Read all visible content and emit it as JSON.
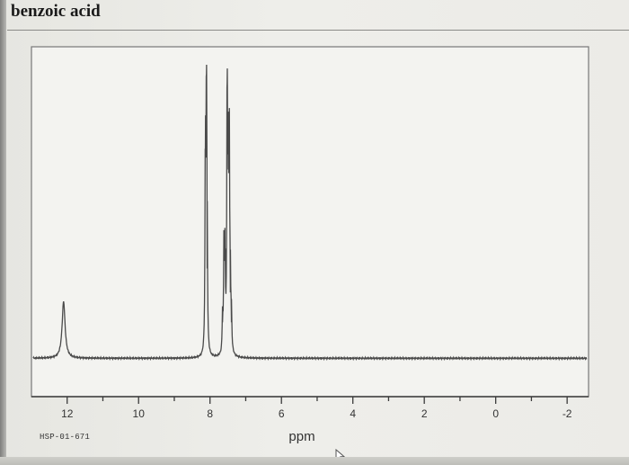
{
  "page": {
    "title": "benzoic acid",
    "spectrum_code": "HSP-01-671"
  },
  "colors": {
    "trace": "#4a4a4a",
    "axis": "#3a3a3a",
    "frame": "#777777"
  },
  "icons": {
    "cursor": "mouse-pointer-icon"
  },
  "chart_data": {
    "type": "line",
    "title": "",
    "xlabel": "ppm",
    "ylabel": "",
    "xlim": [
      13,
      -2.6
    ],
    "ylim": [
      0,
      1
    ],
    "x_reversed": true,
    "grid": false,
    "x_ticks": [
      12,
      10,
      8,
      6,
      4,
      2,
      0,
      -2
    ],
    "x_tick_labels": [
      "12",
      "10",
      "8",
      "6",
      "4",
      "2",
      "0",
      "-2"
    ],
    "baseline": 0.02,
    "peaks": [
      {
        "ppm": 12.1,
        "height": 0.19,
        "width": 0.05,
        "region": "carboxylic acid OH"
      },
      {
        "ppm": 8.13,
        "height": 0.7,
        "width": 0.012
      },
      {
        "ppm": 8.1,
        "height": 0.95,
        "width": 0.012
      },
      {
        "ppm": 8.08,
        "height": 0.3,
        "width": 0.012
      },
      {
        "ppm": 7.65,
        "height": 0.12,
        "width": 0.012
      },
      {
        "ppm": 7.61,
        "height": 0.36,
        "width": 0.012
      },
      {
        "ppm": 7.58,
        "height": 0.34,
        "width": 0.012
      },
      {
        "ppm": 7.52,
        "height": 0.92,
        "width": 0.012
      },
      {
        "ppm": 7.49,
        "height": 0.63,
        "width": 0.012
      },
      {
        "ppm": 7.46,
        "height": 0.72,
        "width": 0.012
      },
      {
        "ppm": 7.43,
        "height": 0.22,
        "width": 0.012
      },
      {
        "ppm": 7.4,
        "height": 0.12,
        "width": 0.012
      }
    ]
  }
}
